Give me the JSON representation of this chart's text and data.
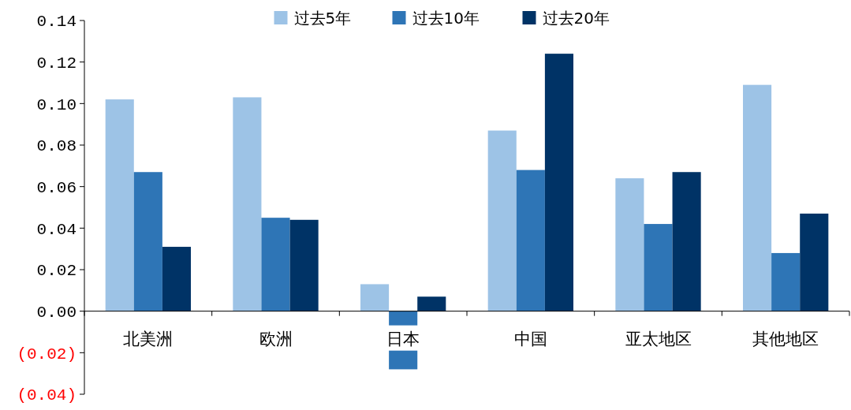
{
  "chart_data": {
    "type": "bar",
    "categories": [
      "北美洲",
      "欧洲",
      "日本",
      "中国",
      "亚太地区",
      "其他地区"
    ],
    "series": [
      {
        "name": "过去5年",
        "color": "#9dc3e6",
        "values": [
          0.102,
          0.103,
          0.013,
          0.087,
          0.064,
          0.109
        ]
      },
      {
        "name": "过去10年",
        "color": "#2e75b6",
        "values": [
          0.067,
          0.045,
          -0.028,
          0.068,
          0.042,
          0.028
        ]
      },
      {
        "name": "过去20年",
        "color": "#003366",
        "values": [
          0.031,
          0.044,
          0.007,
          0.124,
          0.067,
          0.047
        ]
      }
    ],
    "ylim": [
      -0.04,
      0.14
    ],
    "yticks": [
      {
        "value": -0.04,
        "label": "(0.04)"
      },
      {
        "value": -0.02,
        "label": "(0.02)"
      },
      {
        "value": 0,
        "label": "0.00"
      },
      {
        "value": 0.02,
        "label": "0.02"
      },
      {
        "value": 0.04,
        "label": "0.04"
      },
      {
        "value": 0.06,
        "label": "0.06"
      },
      {
        "value": 0.08,
        "label": "0.08"
      },
      {
        "value": 0.1,
        "label": "0.10"
      },
      {
        "value": 0.12,
        "label": "0.12"
      },
      {
        "value": 0.14,
        "label": "0.14"
      }
    ],
    "legend": "top"
  }
}
